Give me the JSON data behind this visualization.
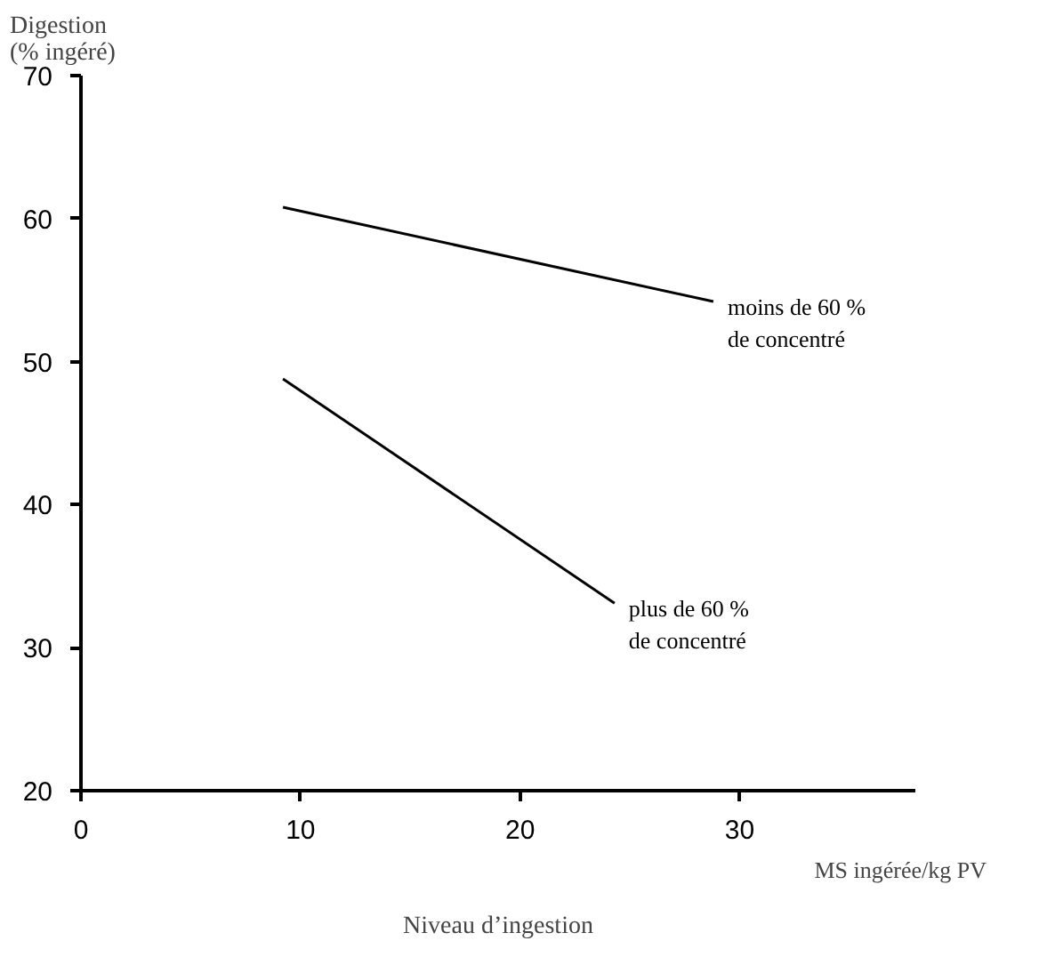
{
  "chart_data": {
    "type": "line",
    "xlabel": "Niveau d’ingestion",
    "ylabel": "Digestion\n(% ingéré)",
    "annotations": [
      "MS ingérée/kg PV"
    ],
    "series": [
      {
        "name": "moins de 60 %\nde concentré",
        "color": "#000000",
        "x": [
          9.2,
          28.8
        ],
        "values": [
          60.8,
          54.2
        ]
      },
      {
        "name": "plus de 60 %\nde concentré",
        "color": "#000000",
        "x": [
          9.2,
          24.3
        ],
        "values": [
          48.8,
          33.1
        ]
      }
    ],
    "xlim": [
      0,
      38
    ],
    "ylim": [
      20,
      70
    ],
    "xticks": [
      0,
      10,
      20,
      30
    ],
    "yticks": [
      20,
      30,
      40,
      50,
      60,
      70
    ],
    "grid": false,
    "legend": false,
    "marker": "none",
    "line_style": "solid"
  }
}
